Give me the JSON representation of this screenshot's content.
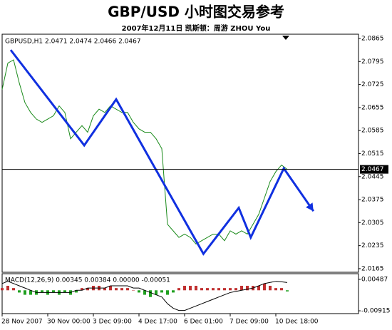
{
  "chart_data": [
    {
      "type": "line",
      "title": "GBP/USD 小时图交易参考",
      "subtitle": "2007年12月11日  凯斯顿：周游 ZHOU You",
      "header_label": "GBPUSD,H1  2.0471 2.0474 2.0466 2.0467",
      "categories": [
        "28 Nov 2007",
        null,
        null,
        null,
        null,
        null,
        null,
        null,
        "30 Nov 00:00",
        null,
        null,
        null,
        null,
        null,
        null,
        null,
        "3 Dec 09:00",
        null,
        null,
        null,
        null,
        null,
        null,
        null,
        "4 Dec 17:00",
        null,
        null,
        null,
        null,
        null,
        null,
        null,
        "6 Dec 01:00",
        null,
        null,
        null,
        null,
        null,
        null,
        null,
        "7 Dec 09:00",
        null,
        null,
        null,
        null,
        null,
        null,
        null,
        "10 Dec 18:00",
        null,
        null
      ],
      "series": [
        {
          "color": "#1a8a1a",
          "values": [
            2.071,
            2.079,
            2.08,
            2.073,
            2.067,
            2.064,
            2.062,
            2.061,
            2.062,
            2.063,
            2.066,
            2.064,
            2.056,
            2.058,
            2.06,
            2.058,
            2.063,
            2.065,
            2.064,
            2.066,
            2.065,
            2.064,
            2.064,
            2.061,
            2.059,
            2.058,
            2.058,
            2.056,
            2.053,
            2.03,
            2.028,
            2.026,
            2.027,
            2.026,
            2.024,
            2.025,
            2.026,
            2.027,
            2.027,
            2.025,
            2.028,
            2.027,
            2.028,
            2.027,
            2.03,
            2.033,
            2.038,
            2.043,
            2.046,
            2.048,
            2.0467
          ]
        }
      ],
      "annotation": {
        "color": "#1030e0",
        "x": [
          1.5,
          14.4,
          20,
          35.3,
          41.5,
          43.6,
          49.4,
          54.6
        ],
        "values": [
          2.083,
          2.054,
          2.068,
          2.021,
          2.035,
          2.026,
          2.047,
          2.034
        ]
      },
      "last_price": 2.0467,
      "ylim": [
        2.0154,
        2.0878
      ],
      "yticks": [
        2.0865,
        2.0795,
        2.0725,
        2.0655,
        2.0585,
        2.0515,
        2.0445,
        2.0375,
        2.0305,
        2.0235,
        2.0165
      ]
    },
    {
      "type": "macd",
      "label": "MACD(12,26,9) 0.00345 0.00384 0.00000 -0.00051",
      "positive_color": "#c03030",
      "negative_color": "#20a020",
      "histogram": [
        0.001,
        0.002,
        0.001,
        -0.001,
        -0.002,
        -0.002,
        -0.002,
        -0.001,
        -0.002,
        -0.001,
        -0.002,
        -0.001,
        -0.002,
        -0.001,
        0.001,
        0.001,
        0.002,
        0.002,
        0.001,
        0.002,
        0.001,
        0.001,
        0.001,
        0,
        -0.001,
        -0.002,
        -0.003,
        -0.002,
        -0.001,
        -0.002,
        -0.001,
        0.001,
        0.002,
        0.002,
        0.002,
        0.001,
        0.001,
        0.001,
        0.001,
        0.001,
        0.001,
        0.001,
        0.002,
        0.002,
        0.002,
        0.002,
        0.003,
        0.002,
        0.001,
        0.001,
        -0.0005
      ],
      "signal": {
        "color": "#000000",
        "values": [
          0.003,
          0.004,
          0.003,
          0.002,
          0.001,
          0,
          -0.001,
          -0.001,
          -0.001,
          -0.001,
          -0.001,
          -0.001,
          -0.001,
          0,
          0,
          0.001,
          0.001,
          0.001,
          0.001,
          0.002,
          0.002,
          0.002,
          0.002,
          0.001,
          0.001,
          0,
          -0.001,
          -0.002,
          -0.003,
          -0.006,
          -0.008,
          -0.009,
          -0.009,
          -0.008,
          -0.007,
          -0.006,
          -0.005,
          -0.004,
          -0.003,
          -0.002,
          -0.001,
          -0.0005,
          0,
          0.0005,
          0.001,
          0.002,
          0.003,
          0.0035,
          0.004,
          0.0038,
          0.00345
        ]
      },
      "ylim": [
        -0.0104,
        0.0074
      ],
      "yticks": [
        0.00487,
        -0.00915
      ]
    }
  ]
}
